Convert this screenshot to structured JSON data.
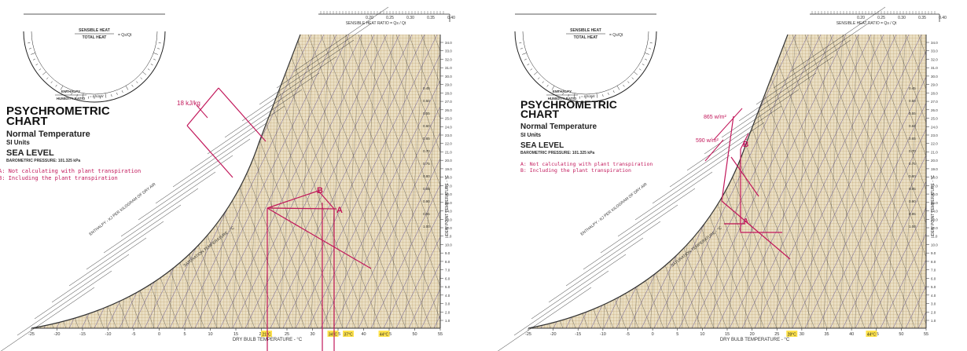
{
  "chart_data": [
    {
      "type": "psychrometric",
      "title_line1": "PSYCHROMETRIC",
      "title_line2": "CHART",
      "subtitle1": "Normal Temperature",
      "subtitle2": "SI Units",
      "subtitle3": "SEA LEVEL",
      "pressure": "BAROMETRIC PRESSURE: 101.325 kPa",
      "protractor_top": "SENSIBLE HEAT",
      "protractor_bottom": "TOTAL HEAT",
      "protractor_symbol": "= Qs/Qt",
      "enthalpy_top": "ENTHALPY",
      "enthalpy_bottom": "HUMIDITY RATIO",
      "enthalpy_symbol": "= Δh/ΔW",
      "shr_scale_label": "SENSIBLE HEAT RATIO = Qs / Qt",
      "shr_ticks": [
        "0.20",
        "0.25",
        "0.30",
        "0.35",
        "0.40"
      ],
      "xlabel": "DRY BULB TEMPERATURE - °C",
      "x_ticks": [
        -25,
        -20,
        -15,
        -10,
        -5,
        0,
        5,
        10,
        15,
        20,
        25,
        30,
        35,
        40,
        45,
        50,
        55
      ],
      "xlim": [
        -25,
        55
      ],
      "sat_label": "SATURATION TEMPERATURE - °C",
      "enthalpy_axis_label": "ENTHALPY - KJ PER KILOGRAM OF DRY AIR",
      "dewpoint_label": "DEW POINT TEMPERATURE - °C",
      "right_scale": [
        "34.0",
        "33.0",
        "32.0",
        "31.0",
        "30.0",
        "29.0",
        "28.0",
        "27.0",
        "26.0",
        "25.0",
        "24.0",
        "23.0",
        "22.0",
        "21.0",
        "20.0",
        "19.0",
        "18.0",
        "17.0",
        "16.0",
        "15.0",
        "14.0",
        "13.0",
        "12.0",
        "11.0",
        "10.0",
        "9.0",
        "8.0",
        "7.0",
        "6.0",
        "5.0",
        "4.0",
        "3.0",
        "2.0",
        "1.0"
      ],
      "shr_side": [
        "0.45",
        "0.50",
        "0.55",
        "0.60",
        "0.65",
        "0.70",
        "0.75",
        "0.80",
        "0.85",
        "0.90",
        "0.95",
        "1.00"
      ],
      "note_a": "A: Not calculating with plant transpiration",
      "note_b": "B: Including the plant transpiration",
      "annotation": "18 kJ/kg",
      "highlight_temps": [
        "21°C",
        "34°C",
        "37°C",
        "44°C"
      ],
      "points": [
        {
          "label": "A",
          "db": 37,
          "w": 15.5
        },
        {
          "label": "B",
          "db": 34,
          "w": 18.5
        },
        {
          "label": "",
          "db": 21,
          "w": 15.5
        }
      ]
    },
    {
      "type": "psychrometric",
      "title_line1": "PSYCHROMETRIC",
      "title_line2": "CHART",
      "subtitle1": "Normal Temperature",
      "subtitle2": "SI Units",
      "subtitle3": "SEA LEVEL",
      "pressure": "BAROMETRIC PRESSURE: 101.325 kPa",
      "protractor_top": "SENSIBLE HEAT",
      "protractor_bottom": "TOTAL HEAT",
      "protractor_symbol": "= Qs/Qt",
      "enthalpy_top": "ENTHALPY",
      "enthalpy_bottom": "HUMIDITY RATIO",
      "enthalpy_symbol": "= Δh/ΔW",
      "shr_scale_label": "SENSIBLE HEAT RATIO = Qs / Qt",
      "shr_ticks": [
        "0.20",
        "0.25",
        "0.30",
        "0.35",
        "0.40"
      ],
      "xlabel": "DRY BULB TEMPERATURE - °C",
      "x_ticks": [
        -25,
        -20,
        -15,
        -10,
        -5,
        0,
        5,
        10,
        15,
        20,
        25,
        30,
        35,
        40,
        45,
        50,
        55
      ],
      "xlim": [
        -25,
        55
      ],
      "sat_label": "SATURATION TEMPERATURE - °C",
      "enthalpy_axis_label": "ENTHALPY - KJ PER KILOGRAM OF DRY AIR",
      "dewpoint_label": "DEW POINT TEMPERATURE - °C",
      "right_scale": [
        "34.0",
        "33.0",
        "32.0",
        "31.0",
        "30.0",
        "29.0",
        "28.0",
        "27.0",
        "26.0",
        "25.0",
        "24.0",
        "23.0",
        "22.0",
        "21.0",
        "20.0",
        "19.0",
        "18.0",
        "17.0",
        "16.0",
        "15.0",
        "14.0",
        "13.0",
        "12.0",
        "11.0",
        "10.0",
        "9.0",
        "8.0",
        "7.0",
        "6.0",
        "5.0",
        "4.0",
        "3.0",
        "2.0",
        "1.0"
      ],
      "shr_side": [
        "0.45",
        "0.50",
        "0.55",
        "0.60",
        "0.65",
        "0.70",
        "0.75",
        "0.80",
        "0.85",
        "0.90",
        "0.95",
        "1.00"
      ],
      "note_a": "A: Not calculating with plant transpiration",
      "note_b": "B: Including the plant transpiration",
      "annotation1": "865 w/m²",
      "annotation2": "590 w/m²",
      "highlight_temps": [
        "28°C",
        "44°C"
      ],
      "points": [
        {
          "label": "A",
          "db": 20,
          "w": 14
        },
        {
          "label": "B",
          "db": 20,
          "w": 21
        }
      ]
    }
  ]
}
